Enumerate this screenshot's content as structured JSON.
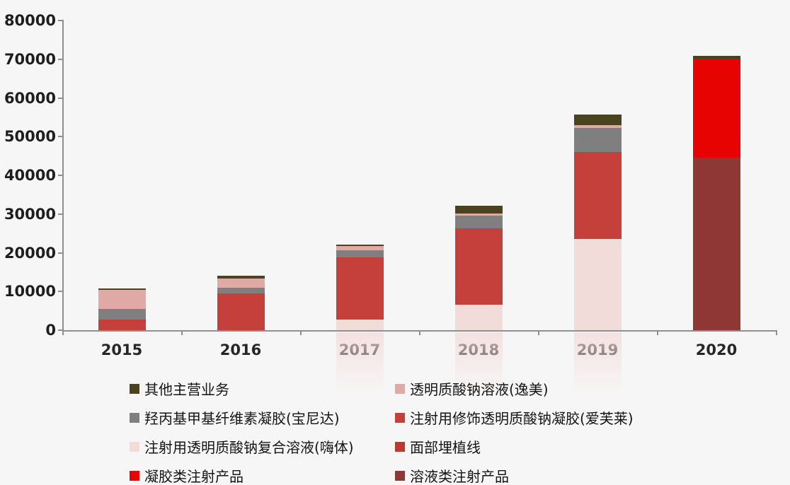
{
  "chart_data": {
    "type": "bar",
    "stacked": true,
    "title": "",
    "xlabel": "",
    "ylabel": "",
    "grid": false,
    "background_color": "#F7F6F6",
    "axis_color": "#8F8F8F",
    "text_color": "#1E1E1E",
    "ylim": [
      0,
      80000
    ],
    "ytick_interval": 10000,
    "yticks": [
      "0",
      "10000",
      "20000",
      "30000",
      "40000",
      "50000",
      "60000",
      "70000",
      "80000"
    ],
    "categories": [
      "2015",
      "2016",
      "2017",
      "2018",
      "2019",
      "2020"
    ],
    "series": [
      {
        "name": "其他主营业务",
        "color": "#4A431E",
        "values": [
          400,
          600,
          400,
          1900,
          2800,
          700
        ]
      },
      {
        "name": "透明质酸钠溶液(逸美)",
        "color": "#E1A9A5",
        "values": [
          5000,
          2500,
          1100,
          600,
          600,
          0
        ]
      },
      {
        "name": "羟丙基甲基纤维素凝胶(宝尼达)",
        "color": "#7F7F7F",
        "values": [
          2700,
          1400,
          1800,
          3200,
          6300,
          0
        ]
      },
      {
        "name": "注射用修饰透明质酸钠凝胶(爱芙莱)",
        "color": "#C5403A",
        "values": [
          2700,
          9500,
          16000,
          19800,
          22400,
          0
        ]
      },
      {
        "name": "注射用透明质酸钠复合溶液(嗨体)",
        "color": "#F2DCDA",
        "values": [
          0,
          0,
          2800,
          6600,
          23600,
          0
        ]
      },
      {
        "name": "面部埋植线",
        "color": "#BB3B31",
        "values": [
          0,
          0,
          0,
          0,
          0,
          0
        ]
      },
      {
        "name": "凝胶类注射产品",
        "color": "#E60302",
        "values": [
          0,
          0,
          0,
          0,
          0,
          25700
        ]
      },
      {
        "name": "溶液类注射产品",
        "color": "#8E3734",
        "values": [
          0,
          0,
          0,
          0,
          0,
          44500
        ]
      }
    ],
    "totals": [
      10800,
      14000,
      22100,
      32100,
      55700,
      70900
    ],
    "stack_order_bottom_to_top": [
      "溶液类注射产品",
      "凝胶类注射产品",
      "面部埋植线",
      "注射用透明质酸钠复合溶液(嗨体)",
      "注射用修饰透明质酸钠凝胶(爱芙莱)",
      "羟丙基甲基纤维素凝胶(宝尼达)",
      "透明质酸钠溶液(逸美)",
      "其他主营业务"
    ],
    "legend": {
      "position": "bottom",
      "columns": 2
    }
  }
}
